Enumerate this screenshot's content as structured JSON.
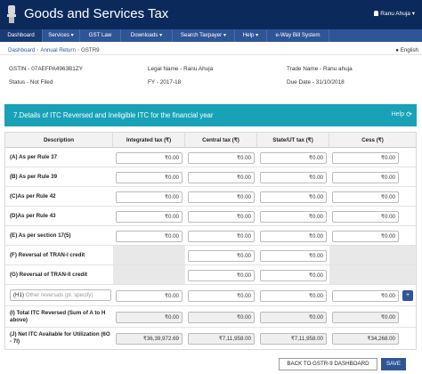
{
  "header": {
    "title": "Goods and Services Tax",
    "user": "Ranu Ahuja"
  },
  "nav": [
    {
      "label": "Dashboard"
    },
    {
      "label": "Services ▾"
    },
    {
      "label": "GST Law"
    },
    {
      "label": "Downloads ▾"
    },
    {
      "label": "Search Taxpayer ▾"
    },
    {
      "label": "Help ▾"
    },
    {
      "label": "e-Way Bill System"
    }
  ],
  "breadcrumb": {
    "items": [
      "Dashboard",
      "Annual Return",
      "GSTR9"
    ],
    "separator": "›"
  },
  "language": "English",
  "taxpayer": {
    "gstin": "GSTIN - 07AEFPA4963B1ZY",
    "legal_name": "Legal Name - Ranu Ahuja",
    "trade_name": "Trade Name - Ranu ahuja",
    "status": "Status - Not Filed",
    "fy": "FY - 2017-18",
    "due_date": "Due Date - 31/10/2018"
  },
  "section": {
    "title": "7.Details of ITC Reversed and Ineligible ITC for the financial year",
    "help": "Help",
    "refresh_icon": "⟳"
  },
  "columns": [
    "Description",
    "Integrated tax (₹)",
    "Central tax (₹)",
    "State/UT tax (₹)",
    "Cess (₹)"
  ],
  "rows": [
    {
      "label": "(A) As per Rule 37",
      "values": [
        "₹0.00",
        "₹0.00",
        "₹0.00",
        "₹0.00"
      ]
    },
    {
      "label": "(B) As per Rule 39",
      "values": [
        "₹0.00",
        "₹0.00",
        "₹0.00",
        "₹0.00"
      ]
    },
    {
      "label": "(C)As per Rule 42",
      "values": [
        "₹0.00",
        "₹0.00",
        "₹0.00",
        "₹0.00"
      ]
    },
    {
      "label": "(D)As per Rule 43",
      "values": [
        "₹0.00",
        "₹0.00",
        "₹0.00",
        "₹0.00"
      ]
    },
    {
      "label": "(E) As per section 17(5)",
      "values": [
        "₹0.00",
        "₹0.00",
        "₹0.00",
        "₹0.00"
      ]
    },
    {
      "label": "(F) Reversal of TRAN-I credit",
      "values": [
        "",
        "₹0.00",
        "₹0.00",
        ""
      ]
    },
    {
      "label": "(G) Reversal of TRAN-II credit",
      "values": [
        "",
        "₹0.00",
        "₹0.00",
        ""
      ]
    },
    {
      "label": "(H1)",
      "placeholder": "Other reversals (pl. specify)",
      "values": [
        "₹0.00",
        "₹0.00",
        "₹0.00",
        "₹0.00"
      ]
    },
    {
      "label": "(I) Total ITC Reversed (Sum of A to H above)",
      "values": [
        "₹0.00",
        "₹0.00",
        "₹0.00",
        "₹0.00"
      ]
    },
    {
      "label": "(J) Net ITC Available for Utilization (6O - 7I)",
      "values": [
        "₹36,39,972.69",
        "₹7,11,958.00",
        "₹7,11,958.00",
        "₹34,268.00"
      ]
    }
  ],
  "buttons": {
    "back": "BACK TO GSTR-9 DASHBOARD",
    "save": "SAVE",
    "add": "+"
  }
}
